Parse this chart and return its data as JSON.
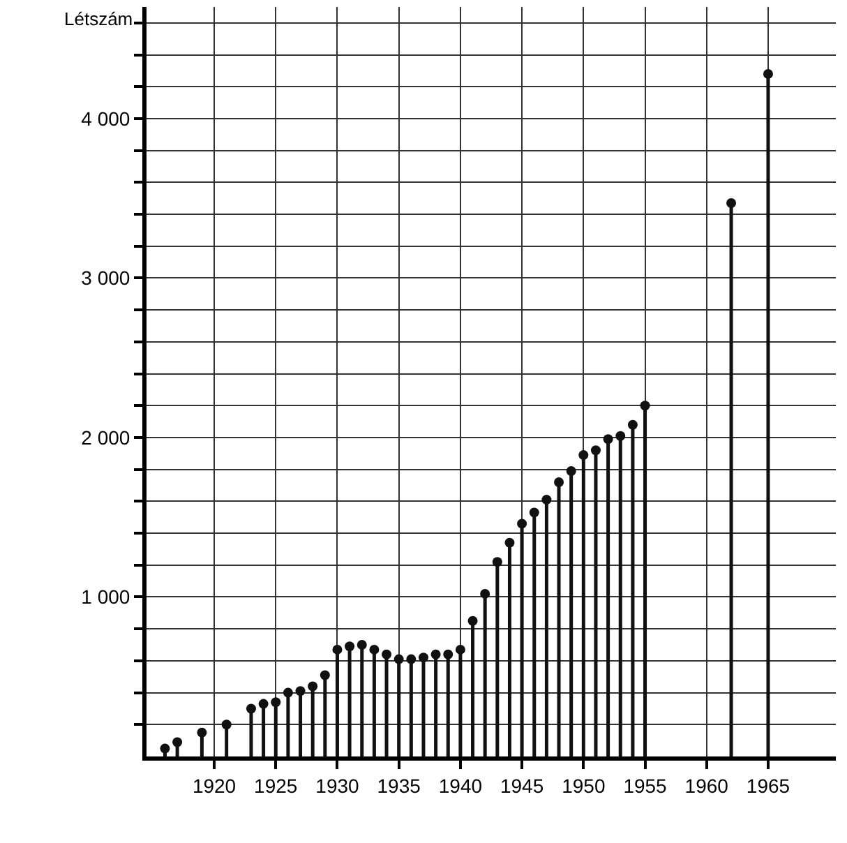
{
  "chart_data": {
    "type": "lollipop",
    "ylabel": "Létszám",
    "x": [
      1916,
      1917,
      1919,
      1921,
      1923,
      1924,
      1925,
      1926,
      1927,
      1928,
      1929,
      1930,
      1931,
      1932,
      1933,
      1934,
      1935,
      1936,
      1937,
      1938,
      1939,
      1940,
      1941,
      1942,
      1943,
      1944,
      1945,
      1946,
      1947,
      1948,
      1949,
      1950,
      1951,
      1952,
      1953,
      1954,
      1955,
      1962,
      1965
    ],
    "values": [
      50,
      90,
      150,
      200,
      300,
      330,
      340,
      400,
      410,
      440,
      510,
      670,
      690,
      700,
      670,
      640,
      610,
      610,
      620,
      640,
      640,
      670,
      850,
      1020,
      1220,
      1340,
      1460,
      1530,
      1610,
      1720,
      1790,
      1890,
      1920,
      1990,
      2010,
      2080,
      2200,
      3470,
      4280
    ],
    "color": "#111111",
    "marker": "circle",
    "xlim": [
      1914.5,
      1970.5
    ],
    "xticks": [
      1920,
      1925,
      1930,
      1935,
      1940,
      1945,
      1950,
      1955,
      1960,
      1965
    ],
    "ylim": [
      0,
      4700
    ],
    "yticks": [
      {
        "value": 200,
        "label": null
      },
      {
        "value": 400,
        "label": null
      },
      {
        "value": 600,
        "label": null
      },
      {
        "value": 800,
        "label": null
      },
      {
        "value": 1000,
        "label": "1 000"
      },
      {
        "value": 1200,
        "label": null
      },
      {
        "value": 1400,
        "label": null
      },
      {
        "value": 1600,
        "label": null
      },
      {
        "value": 1800,
        "label": null
      },
      {
        "value": 2000,
        "label": "2 000"
      },
      {
        "value": 2200,
        "label": null
      },
      {
        "value": 2400,
        "label": null
      },
      {
        "value": 2600,
        "label": null
      },
      {
        "value": 2800,
        "label": null
      },
      {
        "value": 3000,
        "label": "3 000"
      },
      {
        "value": 3200,
        "label": null
      },
      {
        "value": 3400,
        "label": null
      },
      {
        "value": 3600,
        "label": null
      },
      {
        "value": 3800,
        "label": null
      },
      {
        "value": 4000,
        "label": "4 000"
      },
      {
        "value": 4200,
        "label": null
      },
      {
        "value": 4400,
        "label": null
      },
      {
        "value": 4600,
        "label": null
      }
    ],
    "grid": true
  }
}
